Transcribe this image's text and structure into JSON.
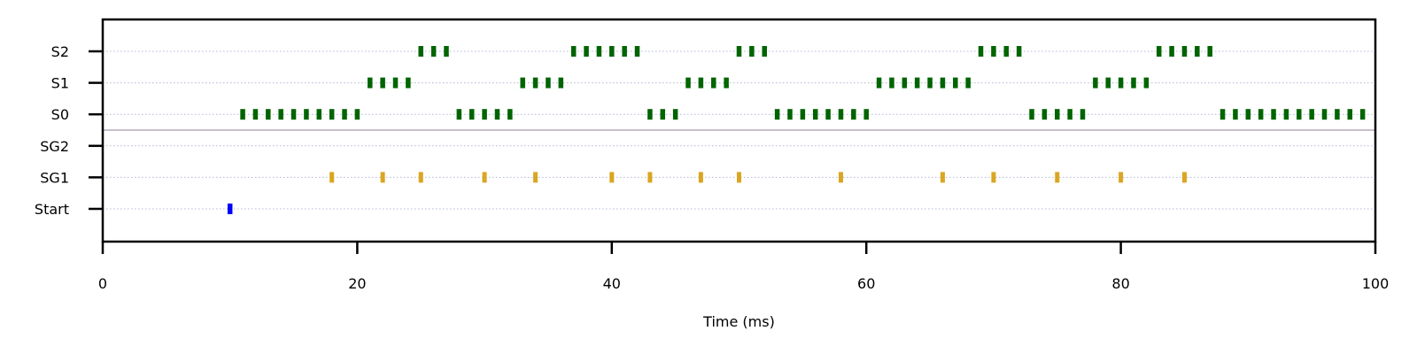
{
  "chart_data": {
    "type": "scatter",
    "title": "",
    "xlabel": "Time (ms)",
    "ylabel": "",
    "xlim": [
      0,
      100
    ],
    "x_ticks": [
      0,
      20,
      40,
      60,
      80,
      100
    ],
    "y_categories": [
      "Start",
      "SG1",
      "SG2",
      "S0",
      "S1",
      "S2"
    ],
    "grid": "horizontal dotted",
    "separator_between": [
      "SG2",
      "S0"
    ],
    "series": [
      {
        "category": "Start",
        "color": "#0000ff",
        "x": [
          10
        ]
      },
      {
        "category": "SG1",
        "color": "#daa520",
        "x": [
          18,
          22,
          25,
          30,
          34,
          40,
          43,
          47,
          50,
          58,
          66,
          70,
          75,
          80,
          85
        ]
      },
      {
        "category": "SG2",
        "color": "#006400",
        "x": []
      },
      {
        "category": "S0",
        "color": "#006400",
        "x": [
          11,
          12,
          13,
          14,
          15,
          16,
          17,
          18,
          19,
          20,
          28,
          29,
          30,
          31,
          32,
          43,
          44,
          45,
          53,
          54,
          55,
          56,
          57,
          58,
          59,
          60,
          73,
          74,
          75,
          76,
          77,
          88,
          89,
          90,
          91,
          92,
          93,
          94,
          95,
          96,
          97,
          98,
          99
        ]
      },
      {
        "category": "S1",
        "color": "#006400",
        "x": [
          21,
          22,
          23,
          24,
          33,
          34,
          35,
          36,
          46,
          47,
          48,
          49,
          61,
          62,
          63,
          64,
          65,
          66,
          67,
          68,
          78,
          79,
          80,
          81,
          82
        ]
      },
      {
        "category": "S2",
        "color": "#006400",
        "x": [
          25,
          26,
          27,
          37,
          38,
          39,
          40,
          41,
          42,
          50,
          51,
          52,
          69,
          70,
          71,
          72,
          83,
          84,
          85,
          86,
          87
        ]
      }
    ]
  }
}
